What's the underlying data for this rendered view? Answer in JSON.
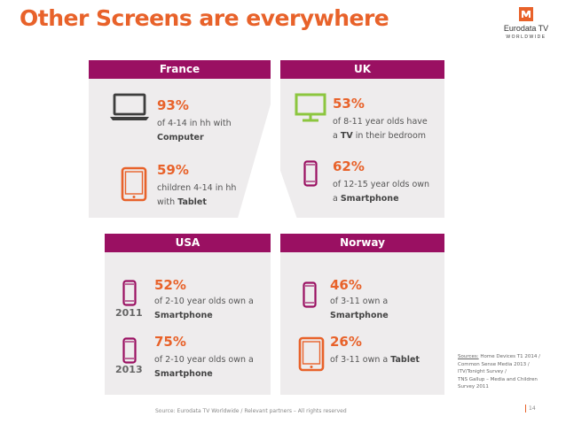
{
  "title": "Other Screens are everywhere",
  "logo": {
    "name": "Eurodata TV",
    "tagline": "WORLDWIDE",
    "brand_color": "#e8622a"
  },
  "colors": {
    "header": "#9a1062",
    "accent": "#e8622a",
    "tv_icon": "#8cc63f",
    "panel_bg": "#eeeced"
  },
  "panels": {
    "france": {
      "header": "France",
      "stats": [
        {
          "icon": "laptop-icon",
          "value": "93%",
          "line1": "of 4-14 in hh with",
          "line2_prefix": "",
          "line2_bold": "Computer"
        },
        {
          "icon": "tablet-icon",
          "value": "59%",
          "line1": "children 4-14 in hh",
          "line2_prefix": "with ",
          "line2_bold": "Tablet"
        }
      ]
    },
    "uk": {
      "header": "UK",
      "stats": [
        {
          "icon": "tv-icon",
          "value": "53%",
          "line1": "of 8-11 year olds have",
          "line2_prefix": "a ",
          "line2_bold": "TV",
          "line2_suffix": " in their bedroom"
        },
        {
          "icon": "smartphone-icon",
          "value": "62%",
          "line1": "of 12-15 year olds own",
          "line2_prefix": "a ",
          "line2_bold": "Smartphone"
        }
      ]
    },
    "usa": {
      "header": "USA",
      "stats": [
        {
          "icon": "smartphone-icon",
          "year": "2011",
          "value": "52%",
          "line1": "of 2-10 year olds own a",
          "line2_bold": "Smartphone"
        },
        {
          "icon": "smartphone-icon",
          "year": "2013",
          "value": "75%",
          "line1": "of 2-10 year olds own a",
          "line2_bold": "Smartphone"
        }
      ]
    },
    "norway": {
      "header": "Norway",
      "stats": [
        {
          "icon": "smartphone-icon",
          "value": "46%",
          "line1": "of 3-11 own a",
          "line2_bold": "Smartphone"
        },
        {
          "icon": "tablet-icon",
          "value": "26%",
          "line1_prefix": "of 3-11 own a ",
          "line1_bold": "Tablet"
        }
      ]
    }
  },
  "sources": {
    "label": "Sources:",
    "line1": " Home Devices T1 2014 /",
    "line2": "Common Sense Media 2013 /",
    "line3": "ITV/Tonight Survey /",
    "line4": "TNS Gallup – Media and Children",
    "line5": "Survey 2011"
  },
  "footer": "Source: Eurodata TV Worldwide / Relevant partners – All rights reserved",
  "page_number": "14"
}
